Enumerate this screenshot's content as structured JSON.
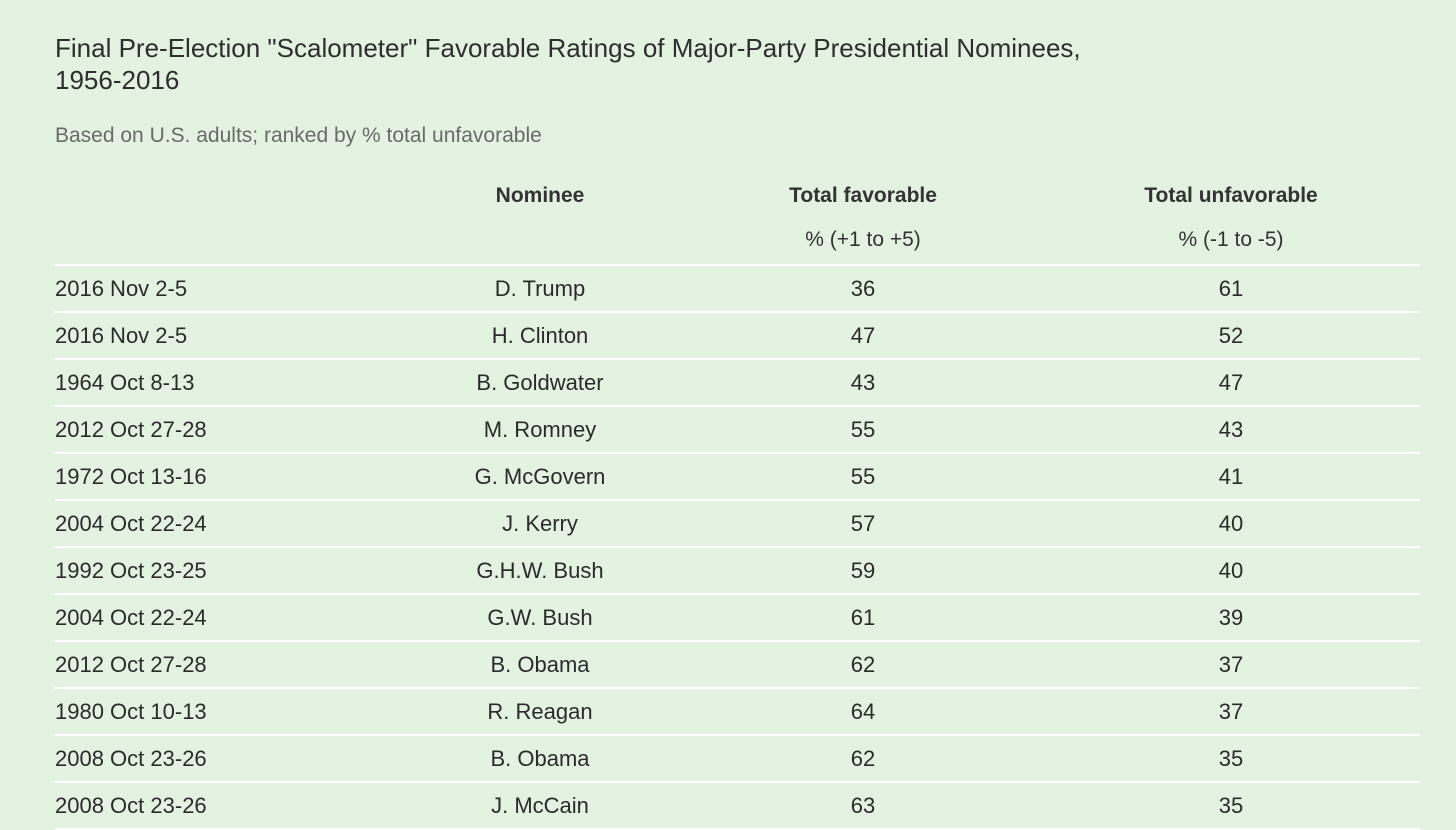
{
  "title": "Final Pre-Election \"Scalometer\" Favorable Ratings of Major-Party Presidential Nominees, 1956-2016",
  "subtitle": "Based on U.S. adults; ranked by % total unfavorable",
  "columns": {
    "date": "",
    "nominee": "Nominee",
    "favorable": "Total favorable",
    "favorable_sub": "% (+1 to +5)",
    "unfavorable": "Total unfavorable",
    "unfavorable_sub": "% (-1 to -5)"
  },
  "rows": [
    {
      "date": "2016 Nov 2-5",
      "nominee": "D. Trump",
      "favorable": "36",
      "unfavorable": "61"
    },
    {
      "date": "2016 Nov 2-5",
      "nominee": "H. Clinton",
      "favorable": "47",
      "unfavorable": "52"
    },
    {
      "date": "1964 Oct 8-13",
      "nominee": "B. Goldwater",
      "favorable": "43",
      "unfavorable": "47"
    },
    {
      "date": "2012 Oct 27-28",
      "nominee": "M. Romney",
      "favorable": "55",
      "unfavorable": "43"
    },
    {
      "date": "1972 Oct 13-16",
      "nominee": "G. McGovern",
      "favorable": "55",
      "unfavorable": "41"
    },
    {
      "date": "2004 Oct 22-24",
      "nominee": "J. Kerry",
      "favorable": "57",
      "unfavorable": "40"
    },
    {
      "date": "1992 Oct 23-25",
      "nominee": "G.H.W. Bush",
      "favorable": "59",
      "unfavorable": "40"
    },
    {
      "date": "2004 Oct 22-24",
      "nominee": "G.W. Bush",
      "favorable": "61",
      "unfavorable": "39"
    },
    {
      "date": "2012 Oct 27-28",
      "nominee": "B. Obama",
      "favorable": "62",
      "unfavorable": "37"
    },
    {
      "date": "1980 Oct 10-13",
      "nominee": "R. Reagan",
      "favorable": "64",
      "unfavorable": "37"
    },
    {
      "date": "2008 Oct 23-26",
      "nominee": "B. Obama",
      "favorable": "62",
      "unfavorable": "35"
    },
    {
      "date": "2008 Oct 23-26",
      "nominee": "J. McCain",
      "favorable": "63",
      "unfavorable": "35"
    }
  ],
  "colors": {
    "background": "#e3f2e1",
    "rule": "#ffffff",
    "text": "#2b2b2b",
    "subtitle": "#6a6a6a"
  }
}
